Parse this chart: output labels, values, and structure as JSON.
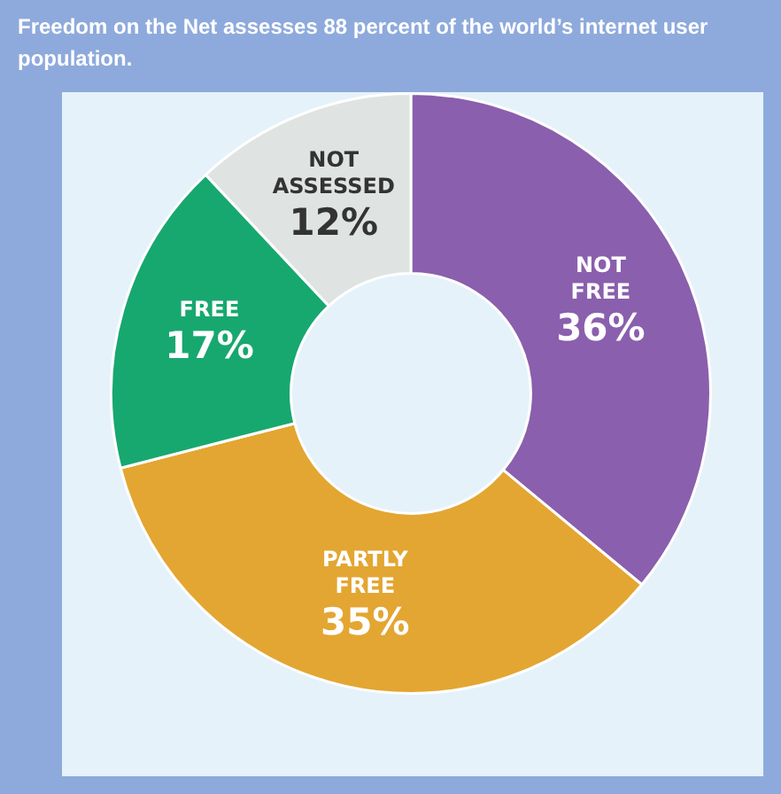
{
  "chart_data": {
    "type": "donut",
    "title": "Freedom on the Net assesses 88 percent of the world’s internet user population.",
    "categories": [
      "NOT FREE",
      "PARTLY FREE",
      "FREE",
      "NOT ASSESSED"
    ],
    "values": [
      36,
      35,
      17,
      12
    ],
    "value_labels": [
      "36%",
      "35%",
      "17%",
      "12%"
    ],
    "colors": [
      "#8a5fad",
      "#e3a632",
      "#17a86f",
      "#dfe4e3"
    ],
    "legend": false
  }
}
